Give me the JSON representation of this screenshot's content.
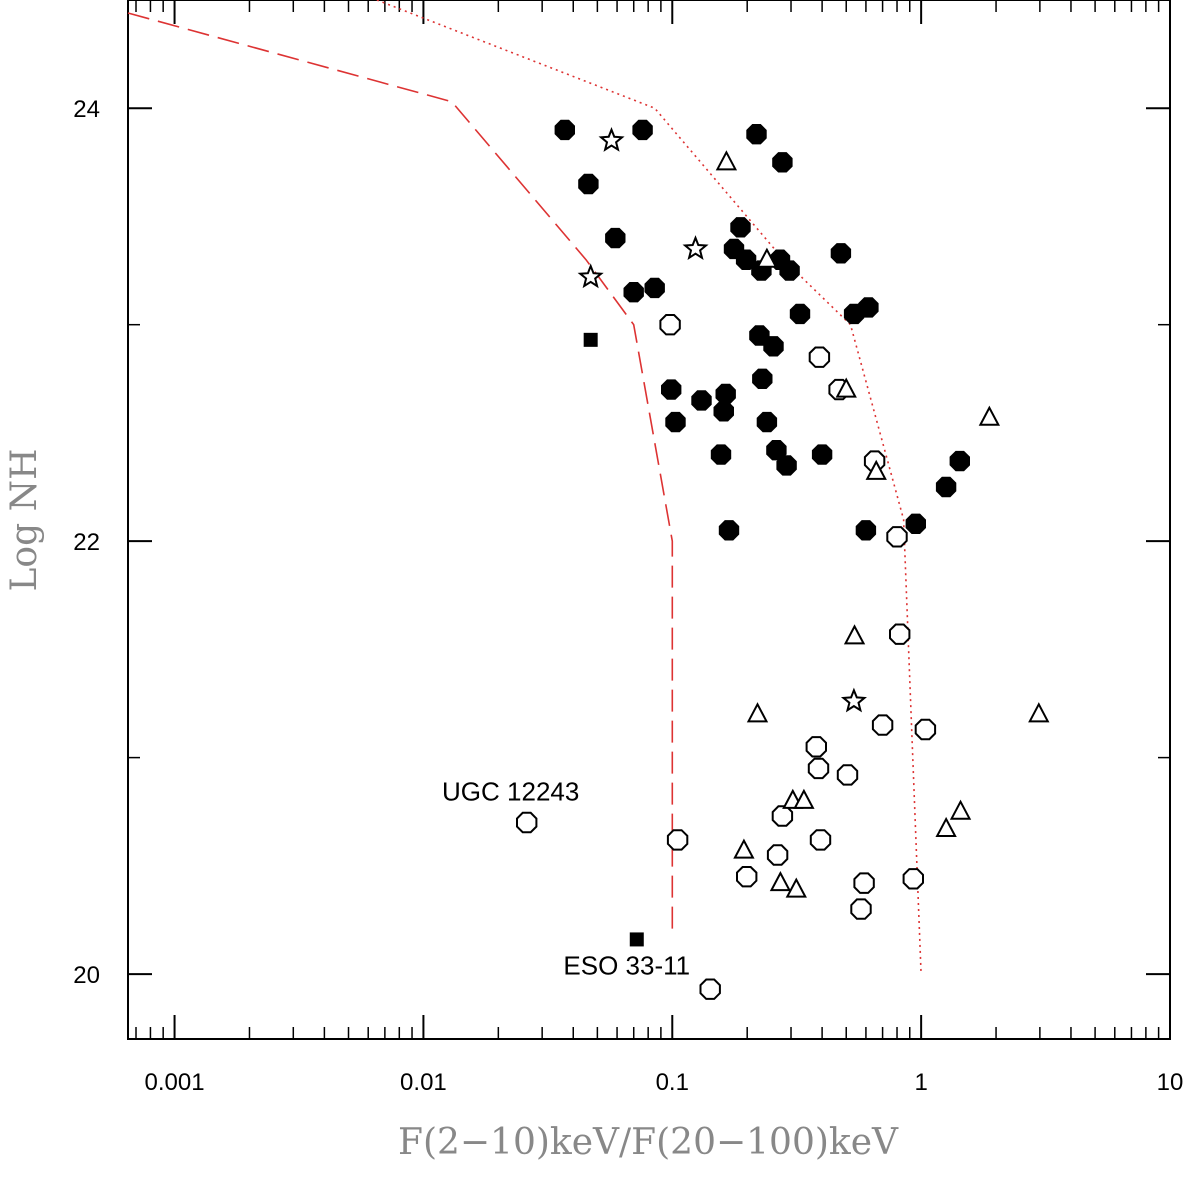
{
  "chart_data": {
    "type": "scatter",
    "title": "",
    "xlabel": "F(2−10)keV/F(20−100)keV",
    "ylabel": "Log NH",
    "xscale": "log",
    "xlim": [
      0.00065,
      10
    ],
    "ylim": [
      19.7,
      24.5
    ],
    "x_ticks": [
      {
        "value": 0.001,
        "label": "0.001"
      },
      {
        "value": 0.01,
        "label": "0.01"
      },
      {
        "value": 0.1,
        "label": "0.1"
      },
      {
        "value": 1,
        "label": "1"
      },
      {
        "value": 10,
        "label": "10"
      }
    ],
    "y_ticks": [
      {
        "value": 20,
        "label": "20"
      },
      {
        "value": 22,
        "label": "22"
      },
      {
        "value": 24,
        "label": "24"
      }
    ],
    "series": [
      {
        "name": "filled circles",
        "marker": "filled-circle",
        "points": [
          [
            0.037,
            23.9
          ],
          [
            0.046,
            23.65
          ],
          [
            0.059,
            23.4
          ],
          [
            0.07,
            23.15
          ],
          [
            0.085,
            23.17
          ],
          [
            0.076,
            23.9
          ],
          [
            0.099,
            22.7
          ],
          [
            0.103,
            22.55
          ],
          [
            0.131,
            22.65
          ],
          [
            0.157,
            22.4
          ],
          [
            0.161,
            22.6
          ],
          [
            0.164,
            22.68
          ],
          [
            0.169,
            22.05
          ],
          [
            0.177,
            23.35
          ],
          [
            0.188,
            23.45
          ],
          [
            0.198,
            23.3
          ],
          [
            0.218,
            23.88
          ],
          [
            0.224,
            22.95
          ],
          [
            0.228,
            23.25
          ],
          [
            0.23,
            22.75
          ],
          [
            0.24,
            22.55
          ],
          [
            0.255,
            22.9
          ],
          [
            0.262,
            22.42
          ],
          [
            0.271,
            23.3
          ],
          [
            0.277,
            23.75
          ],
          [
            0.288,
            22.35
          ],
          [
            0.296,
            23.25
          ],
          [
            0.326,
            23.05
          ],
          [
            0.4,
            22.4
          ],
          [
            0.476,
            23.33
          ],
          [
            0.538,
            23.05
          ],
          [
            0.6,
            22.05
          ],
          [
            0.614,
            23.08
          ],
          [
            0.952,
            22.08
          ],
          [
            1.26,
            22.25
          ],
          [
            1.43,
            22.37
          ]
        ]
      },
      {
        "name": "open circles",
        "marker": "open-circle",
        "points": [
          [
            0.026,
            20.7
          ],
          [
            0.098,
            23.0
          ],
          [
            0.105,
            20.62
          ],
          [
            0.142,
            19.93
          ],
          [
            0.199,
            20.45
          ],
          [
            0.265,
            20.55
          ],
          [
            0.277,
            20.73
          ],
          [
            0.379,
            21.05
          ],
          [
            0.387,
            20.95
          ],
          [
            0.394,
            20.62
          ],
          [
            0.39,
            22.85
          ],
          [
            0.468,
            22.7
          ],
          [
            0.506,
            20.92
          ],
          [
            0.573,
            20.3
          ],
          [
            0.59,
            20.42
          ],
          [
            0.65,
            22.37
          ],
          [
            0.7,
            21.15
          ],
          [
            0.8,
            22.02
          ],
          [
            0.82,
            21.57
          ],
          [
            0.93,
            20.44
          ],
          [
            1.04,
            21.13
          ]
        ]
      },
      {
        "name": "open triangles",
        "marker": "open-triangle",
        "points": [
          [
            0.165,
            23.75
          ],
          [
            0.194,
            20.57
          ],
          [
            0.22,
            21.2
          ],
          [
            0.24,
            23.3
          ],
          [
            0.272,
            20.42
          ],
          [
            0.305,
            20.8
          ],
          [
            0.315,
            20.39
          ],
          [
            0.338,
            20.8
          ],
          [
            0.5,
            22.7
          ],
          [
            0.54,
            21.56
          ],
          [
            0.66,
            22.32
          ],
          [
            1.26,
            20.67
          ],
          [
            1.44,
            20.75
          ],
          [
            1.88,
            22.57
          ],
          [
            2.97,
            21.2
          ]
        ]
      },
      {
        "name": "open stars",
        "marker": "open-star",
        "points": [
          [
            0.047,
            23.22
          ],
          [
            0.057,
            23.85
          ],
          [
            0.124,
            23.35
          ],
          [
            0.537,
            21.26
          ]
        ]
      },
      {
        "name": "filled squares",
        "marker": "filled-square",
        "points": [
          [
            0.047,
            22.93
          ],
          [
            0.072,
            20.16
          ]
        ]
      }
    ],
    "curves": [
      {
        "name": "dashed boundary",
        "style": "dashed",
        "color": "#dd3333",
        "points": [
          [
            0.00065,
            24.44
          ],
          [
            0.013,
            24.03
          ],
          [
            0.045,
            23.3
          ],
          [
            0.07,
            23.0
          ],
          [
            0.1,
            22.0
          ],
          [
            0.1,
            20.2
          ]
        ]
      },
      {
        "name": "dotted boundary",
        "style": "dotted",
        "color": "#dd3333",
        "points": [
          [
            0.0065,
            24.5
          ],
          [
            0.085,
            24.0
          ],
          [
            0.28,
            23.3
          ],
          [
            0.52,
            23.0
          ],
          [
            0.85,
            22.1
          ],
          [
            1.0,
            20.0
          ]
        ]
      }
    ],
    "annotations": [
      {
        "text": "UGC 12243",
        "x": 0.026,
        "y": 20.7,
        "anchor": "above"
      },
      {
        "text": "ESO 33-11",
        "x": 0.072,
        "y": 20.16,
        "anchor": "below"
      }
    ]
  }
}
